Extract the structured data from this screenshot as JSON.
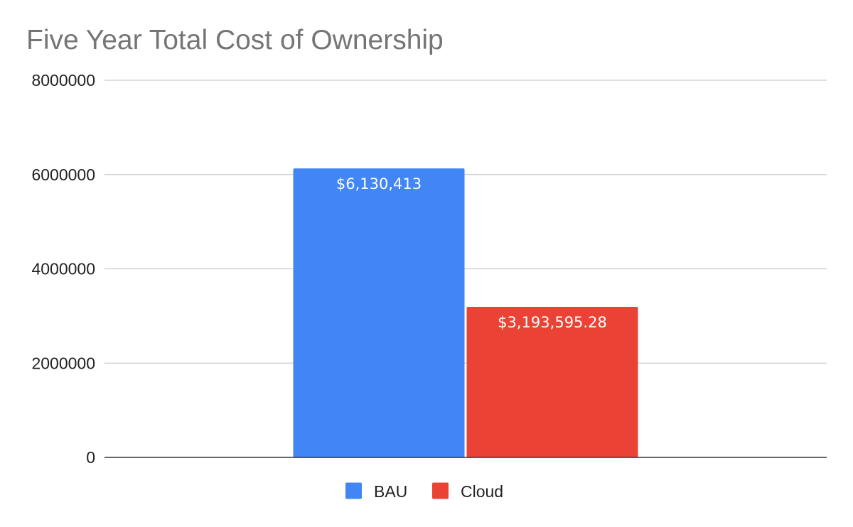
{
  "chart_data": {
    "type": "bar",
    "title": "Five Year Total Cost of Ownership",
    "xlabel": "",
    "ylabel": "",
    "categories": [
      ""
    ],
    "ylim": [
      0,
      8000000
    ],
    "yticks": [
      0,
      2000000,
      4000000,
      6000000,
      8000000
    ],
    "ytick_labels": [
      "0",
      "2000000",
      "4000000",
      "6000000",
      "8000000"
    ],
    "grid": true,
    "legend_position": "bottom",
    "series": [
      {
        "name": "BAU",
        "values": [
          6130413
        ],
        "color": "#4285f4",
        "data_label": "$6,130,413"
      },
      {
        "name": "Cloud",
        "values": [
          3193595.28
        ],
        "color": "#ea4335",
        "data_label": "$3,193,595.28"
      }
    ]
  }
}
